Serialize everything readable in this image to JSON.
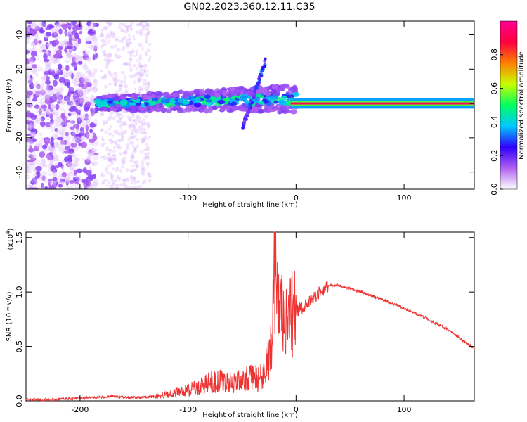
{
  "title": "GN02.2023.360.12.11.C35",
  "chart_data": [
    {
      "type": "heatmap",
      "xlabel": "Height of straight line (km)",
      "ylabel": "Frequency (Hz)",
      "xlim": [
        -250,
        165
      ],
      "ylim": [
        -50,
        48
      ],
      "xticks": [
        -200,
        -100,
        0,
        100
      ],
      "yticks": [
        -40,
        -20,
        0,
        20,
        40
      ],
      "colorbar": {
        "label": "Normalized spectral amplitude",
        "range": [
          0,
          1
        ],
        "ticks": [
          "0.0",
          "0.2",
          "0.4",
          "0.6",
          "0.8"
        ],
        "colors": [
          "#ffffff",
          "#b060f0",
          "#3000ff",
          "#00c8ff",
          "#00ff60",
          "#c8ff00",
          "#ff8000",
          "#ff0040",
          "#ff0090"
        ]
      },
      "features": {
        "noise_band_1_km": [
          -250,
          -185
        ],
        "noise_band_2_km": [
          -180,
          -135
        ],
        "steady_line_km": [
          0,
          165
        ],
        "steady_line_hz": 0
      }
    },
    {
      "type": "line",
      "xlabel": "Height of straight line (km)",
      "ylabel": "SNR (10 * v/v)",
      "y_multiplier": "(x10",
      "y_multiplier_exp": "4",
      "y_multiplier_close": ")",
      "xlim": [
        -250,
        165
      ],
      "ylim": [
        0,
        1.55
      ],
      "xticks": [
        -200,
        -100,
        0,
        100
      ],
      "yticks": [
        "0.0",
        "0.5",
        "1.0",
        "1.5"
      ],
      "color": "#ee3333",
      "series": [
        {
          "x": [
            -250,
            -230,
            -210,
            -190,
            -170,
            -150,
            -130,
            -120,
            -110,
            -100,
            -90,
            -80,
            -70,
            -60,
            -50,
            -40,
            -35,
            -30,
            -25,
            -22,
            -20,
            -18,
            -15,
            -12,
            -10,
            -5,
            0,
            10,
            20,
            30,
            40,
            60,
            80,
            100,
            120,
            140,
            165
          ],
          "values": [
            0.01,
            0.01,
            0.02,
            0.03,
            0.04,
            0.03,
            0.04,
            0.06,
            0.08,
            0.1,
            0.13,
            0.17,
            0.18,
            0.17,
            0.18,
            0.22,
            0.2,
            0.25,
            0.4,
            0.7,
            1.4,
            0.95,
            0.8,
            0.75,
            0.65,
            0.75,
            0.82,
            0.88,
            0.98,
            1.06,
            1.06,
            1.0,
            0.93,
            0.85,
            0.76,
            0.66,
            0.48
          ]
        }
      ]
    }
  ]
}
